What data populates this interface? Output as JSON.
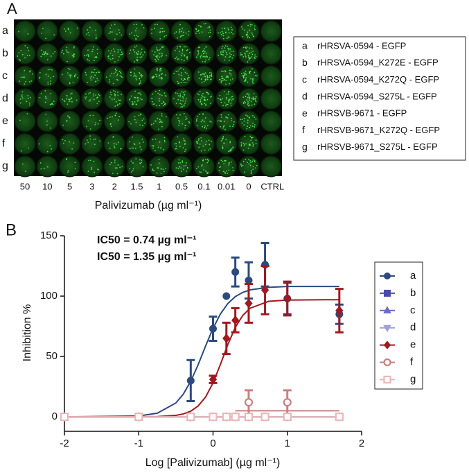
{
  "panel_a": {
    "label": "A",
    "rows": [
      "a",
      "b",
      "c",
      "d",
      "e",
      "f",
      "g"
    ],
    "columns": [
      "50",
      "10",
      "5",
      "3",
      "2",
      "1.5",
      "1",
      "0.5",
      "0.1",
      "0.01",
      "0",
      "CTRL"
    ],
    "x_label": "Palivizumab (µg ml⁻¹)",
    "legend": [
      {
        "key": "a",
        "text": "rHRSVA-0594 - EGFP"
      },
      {
        "key": "b",
        "text": "rHRSVA-0594_K272E - EGFP"
      },
      {
        "key": "c",
        "text": "rHRSVA-0594_K272Q - EGFP"
      },
      {
        "key": "d",
        "text": "rHRSVA-0594_S275L - EGFP"
      },
      {
        "key": "e",
        "text": "rHRSVB-9671 - EGFP"
      },
      {
        "key": "f",
        "text": "rHRSVB-9671_K272Q - EGFP"
      },
      {
        "key": "g",
        "text": "rHRSVB-9671_S275L - EGFP"
      }
    ]
  },
  "chart_data": {
    "type": "scatter",
    "panel_label": "B",
    "x_label": "Log [Palivizumab] (µg ml⁻¹)",
    "y_label": "Inhibition %",
    "annotations": [
      {
        "text": "IC50 = 0.74 µg ml⁻¹",
        "color": "#2c4a7e"
      },
      {
        "text": "IC50 = 1.35 µg ml⁻¹",
        "color": "#a01820"
      }
    ],
    "x": [
      -2,
      -1,
      -0.3,
      0,
      0.18,
      0.3,
      0.48,
      0.7,
      1,
      1.7
    ],
    "xlim": [
      -2,
      2
    ],
    "xticks": [
      -2,
      -1,
      0,
      1,
      2
    ],
    "ylim": [
      -12,
      150
    ],
    "yticks": [
      0,
      50,
      100,
      150
    ],
    "series": [
      {
        "name": "a",
        "color": "#2c4a7e",
        "marker": "circle",
        "filled": true,
        "values": [
          0,
          0,
          30,
          73,
          100,
          120,
          113,
          126,
          98,
          85
        ],
        "errors": [
          null,
          null,
          17,
          10,
          null,
          12,
          15,
          18,
          13,
          8
        ],
        "fit_x": [
          -2,
          -1,
          -0.75,
          -0.5,
          -0.4,
          -0.3,
          -0.2,
          -0.1,
          0,
          0.1,
          0.2,
          0.3,
          0.4,
          0.5,
          0.75,
          1,
          1.5,
          1.7
        ],
        "fit_values": [
          0,
          0.7,
          3,
          11.5,
          18.8,
          29.5,
          43.2,
          58.7,
          73.3,
          85.3,
          93.9,
          99.6,
          103.1,
          105.2,
          107.3,
          108,
          108,
          108
        ]
      },
      {
        "name": "b",
        "color": "#4a4aa8",
        "marker": "square",
        "filled": true,
        "values": [
          0,
          0,
          0,
          0,
          0,
          0,
          0,
          0,
          0,
          0
        ],
        "errors": [
          null,
          null,
          null,
          null,
          null,
          null,
          null,
          null,
          null,
          null
        ],
        "fit_x": [
          -2,
          1.7
        ],
        "fit_values": [
          0,
          0
        ]
      },
      {
        "name": "c",
        "color": "#6a6ac8",
        "marker": "triangle",
        "filled": true,
        "values": [
          0,
          0,
          0,
          0,
          0,
          0,
          0,
          0,
          0,
          0
        ],
        "errors": [
          null,
          null,
          null,
          null,
          null,
          null,
          null,
          null,
          null,
          null
        ],
        "fit_x": [
          -2,
          1.7
        ],
        "fit_values": [
          0,
          0
        ]
      },
      {
        "name": "d",
        "color": "#a0a0d8",
        "marker": "triangle-down",
        "filled": true,
        "values": [
          0,
          0,
          0,
          0,
          0,
          0,
          0,
          0,
          0,
          0
        ],
        "errors": [
          null,
          null,
          null,
          null,
          null,
          null,
          null,
          null,
          null,
          null
        ],
        "fit_x": [
          -2,
          1.7
        ],
        "fit_values": [
          0,
          0
        ]
      },
      {
        "name": "e",
        "color": "#a01820",
        "marker": "diamond",
        "filled": true,
        "values": [
          0,
          0,
          0,
          31,
          65,
          80,
          94,
          105,
          98,
          88
        ],
        "errors": [
          null,
          null,
          null,
          3,
          13,
          10,
          16,
          20,
          14,
          18
        ],
        "fit_x": [
          -2,
          -1,
          -0.75,
          -0.5,
          -0.4,
          -0.3,
          -0.2,
          -0.1,
          0,
          0.1,
          0.2,
          0.3,
          0.4,
          0.5,
          0.75,
          1,
          1.5,
          1.7
        ],
        "fit_values": [
          0,
          0,
          0.2,
          1.2,
          2.4,
          4.7,
          9,
          16.4,
          28.1,
          43.5,
          60,
          74.1,
          84,
          90,
          95.7,
          96.7,
          97,
          97
        ]
      },
      {
        "name": "f",
        "color": "#c98080",
        "marker": "circle",
        "filled": false,
        "values": [
          0,
          0,
          null,
          null,
          null,
          null,
          12,
          null,
          12,
          null
        ],
        "errors": [
          null,
          null,
          null,
          null,
          null,
          null,
          10,
          null,
          10,
          null
        ],
        "fit_x": [
          0.3,
          1.7
        ],
        "fit_values": [
          5,
          5
        ]
      },
      {
        "name": "g",
        "color": "#e8b8b8",
        "marker": "square",
        "filled": false,
        "values": [
          0,
          0,
          0,
          0,
          0,
          0,
          0,
          0,
          0,
          0
        ],
        "errors": [
          null,
          null,
          null,
          null,
          null,
          null,
          null,
          null,
          null,
          null
        ],
        "fit_x": [
          -2,
          1.7
        ],
        "fit_values": [
          0,
          0
        ]
      }
    ]
  }
}
